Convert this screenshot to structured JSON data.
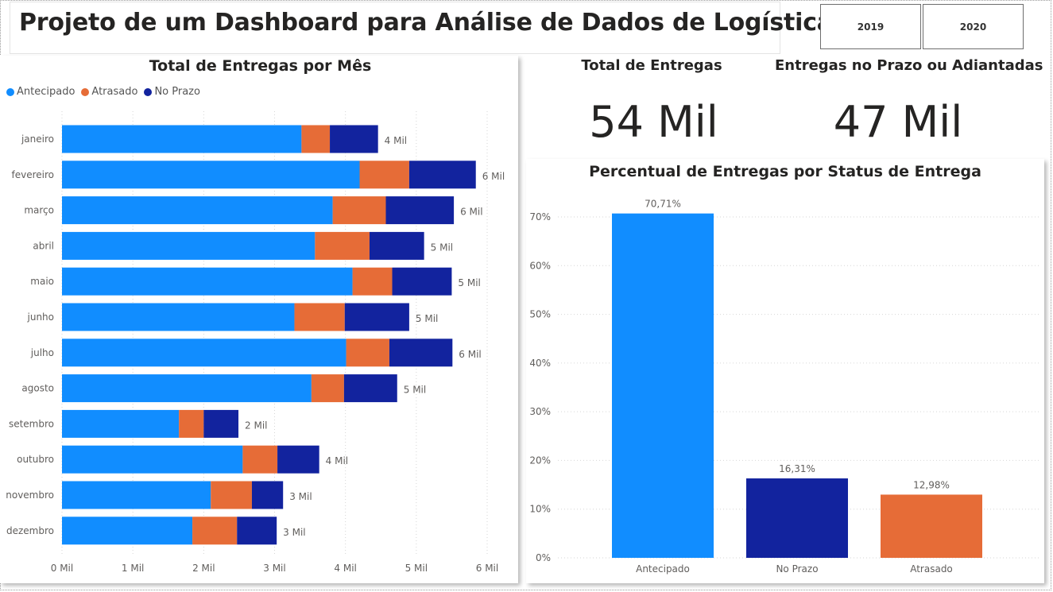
{
  "header": {
    "title": "Projeto de um Dashboard para Análise de Dados de Logística",
    "year_buttons": [
      "2019",
      "2020"
    ]
  },
  "kpis": [
    {
      "label": "Total de Entregas",
      "value": "54 Mil"
    },
    {
      "label": "Entregas no Prazo ou Adiantadas",
      "value": "47 Mil"
    }
  ],
  "colors": {
    "Antecipado": "#118DFF",
    "Atrasado": "#E66C37",
    "No Prazo": "#12239E"
  },
  "chart_data": [
    {
      "type": "bar",
      "orientation": "horizontal",
      "stacked": true,
      "title": "Total de Entregas por Mês",
      "legend_position": "top-left",
      "categories": [
        "janeiro",
        "fevereiro",
        "março",
        "abril",
        "maio",
        "junho",
        "julho",
        "agosto",
        "setembro",
        "outubro",
        "novembro",
        "dezembro"
      ],
      "series": [
        {
          "name": "Antecipado",
          "values": [
            3380,
            4200,
            3820,
            3570,
            4100,
            3280,
            4010,
            3520,
            1650,
            2550,
            2100,
            1840
          ]
        },
        {
          "name": "Atrasado",
          "values": [
            400,
            700,
            750,
            770,
            560,
            710,
            610,
            460,
            350,
            490,
            580,
            630
          ]
        },
        {
          "name": "No Prazo",
          "values": [
            680,
            940,
            960,
            770,
            840,
            910,
            890,
            750,
            490,
            590,
            440,
            560
          ]
        }
      ],
      "total_labels": [
        "4 Mil",
        "6 Mil",
        "6 Mil",
        "5 Mil",
        "5 Mil",
        "5 Mil",
        "6 Mil",
        "5 Mil",
        "2 Mil",
        "4 Mil",
        "3 Mil",
        "3 Mil"
      ],
      "xlim": [
        0,
        6000
      ],
      "x_ticks": [
        0,
        1000,
        2000,
        3000,
        4000,
        5000,
        6000
      ],
      "x_tick_labels": [
        "0 Mil",
        "1 Mil",
        "2 Mil",
        "3 Mil",
        "4 Mil",
        "5 Mil",
        "6 Mil"
      ],
      "grid": true
    },
    {
      "type": "bar",
      "title": "Percentual de Entregas por Status de Entrega",
      "categories": [
        "Antecipado",
        "No Prazo",
        "Atrasado"
      ],
      "values": [
        70.71,
        16.31,
        12.98
      ],
      "data_labels": [
        "70,71%",
        "16,31%",
        "12,98%"
      ],
      "ylim": [
        0,
        70
      ],
      "y_ticks": [
        0,
        10,
        20,
        30,
        40,
        50,
        60,
        70
      ],
      "y_tick_labels": [
        "0%",
        "10%",
        "20%",
        "30%",
        "40%",
        "50%",
        "60%",
        "70%"
      ],
      "grid": true
    }
  ]
}
